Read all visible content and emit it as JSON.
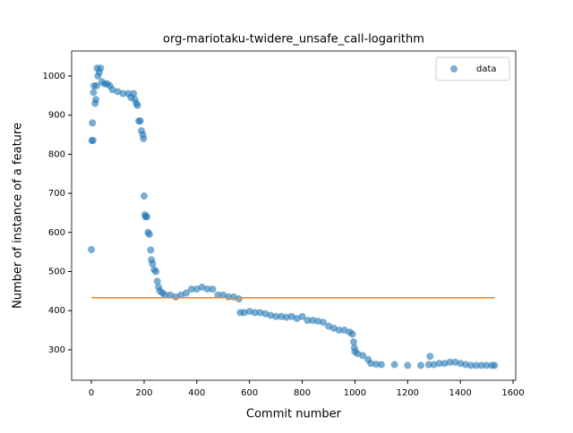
{
  "chart_data": {
    "type": "scatter",
    "title": "org-mariotaku-twidere_unsafe_call-logarithm",
    "x_label": "Commit number",
    "y_label": "Number of instance of a feature",
    "xlim": [
      -75,
      1610
    ],
    "ylim": [
      222,
      1064
    ],
    "xticks": [
      0,
      200,
      400,
      600,
      800,
      1000,
      1200,
      1400,
      1600
    ],
    "yticks": [
      300,
      400,
      500,
      600,
      700,
      800,
      900,
      1000
    ],
    "legend": "upper right",
    "series": [
      {
        "name": "data",
        "color": "#1f77b4",
        "style": "marker",
        "x": [
          0,
          2,
          4,
          6,
          8,
          10,
          14,
          17,
          20,
          22,
          25,
          30,
          35,
          40,
          50,
          60,
          70,
          80,
          100,
          120,
          140,
          150,
          160,
          165,
          170,
          175,
          180,
          185,
          190,
          195,
          198,
          200,
          203,
          206,
          210,
          215,
          220,
          225,
          228,
          232,
          238,
          245,
          250,
          255,
          260,
          270,
          280,
          300,
          320,
          340,
          360,
          380,
          400,
          420,
          440,
          460,
          480,
          500,
          520,
          540,
          560,
          565,
          580,
          600,
          620,
          640,
          660,
          680,
          700,
          720,
          740,
          760,
          780,
          800,
          820,
          840,
          860,
          880,
          900,
          920,
          940,
          960,
          980,
          990,
          995,
          998,
          1000,
          1010,
          1030,
          1050,
          1060,
          1080,
          1100,
          1150,
          1200,
          1250,
          1280,
          1285,
          1300,
          1320,
          1340,
          1360,
          1380,
          1400,
          1420,
          1440,
          1460,
          1480,
          1500,
          1520,
          1530
        ],
        "values": [
          556,
          835,
          880,
          835,
          958,
          975,
          930,
          940,
          975,
          1020,
          1000,
          1010,
          1020,
          985,
          980,
          980,
          975,
          965,
          960,
          955,
          955,
          945,
          955,
          940,
          930,
          925,
          885,
          885,
          860,
          850,
          840,
          693,
          645,
          640,
          640,
          600,
          595,
          555,
          530,
          520,
          505,
          500,
          475,
          460,
          450,
          445,
          440,
          440,
          435,
          440,
          445,
          455,
          455,
          460,
          455,
          455,
          440,
          440,
          435,
          435,
          430,
          395,
          395,
          398,
          395,
          395,
          392,
          388,
          385,
          385,
          383,
          385,
          380,
          385,
          375,
          375,
          373,
          370,
          360,
          355,
          350,
          350,
          345,
          340,
          320,
          305,
          295,
          290,
          285,
          275,
          265,
          263,
          262,
          262,
          260,
          260,
          262,
          283,
          262,
          265,
          265,
          268,
          268,
          265,
          262,
          260,
          260,
          260,
          260,
          260,
          260
        ]
      },
      {
        "color": "#ff7f0e",
        "style": "line",
        "x": [
          0,
          1530
        ],
        "values": [
          433,
          433
        ]
      }
    ]
  }
}
